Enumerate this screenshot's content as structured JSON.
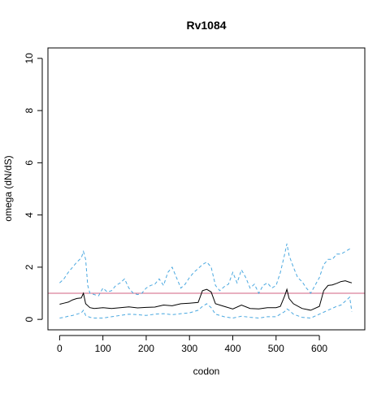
{
  "colors": {
    "omega": "#000000",
    "ci": "#4aa8e0",
    "reference": "#d06080"
  },
  "chart_data": {
    "type": "line",
    "title": "Rv1084",
    "xlabel": "codon",
    "ylabel": "omega (dN/dS)",
    "xlim": [
      -27,
      705
    ],
    "ylim": [
      -0.4,
      10.4
    ],
    "xticks": [
      0,
      100,
      200,
      300,
      400,
      500,
      600
    ],
    "yticks": [
      0,
      2,
      4,
      6,
      8,
      10
    ],
    "grid": false,
    "legend": "none",
    "reference_line": {
      "y": 1.0
    },
    "series": [
      {
        "role": "omega",
        "x": [
          0,
          10,
          20,
          30,
          40,
          50,
          55,
          60,
          70,
          80,
          90,
          100,
          120,
          140,
          160,
          180,
          200,
          220,
          240,
          260,
          280,
          300,
          320,
          330,
          340,
          350,
          360,
          380,
          400,
          420,
          440,
          460,
          480,
          500,
          510,
          520,
          525,
          530,
          540,
          560,
          580,
          600,
          610,
          620,
          630,
          640,
          650,
          660,
          670,
          675
        ],
        "y": [
          0.58,
          0.62,
          0.66,
          0.75,
          0.8,
          0.82,
          1.0,
          0.6,
          0.45,
          0.42,
          0.43,
          0.45,
          0.42,
          0.45,
          0.48,
          0.44,
          0.46,
          0.47,
          0.55,
          0.52,
          0.6,
          0.62,
          0.65,
          1.1,
          1.15,
          1.05,
          0.6,
          0.5,
          0.4,
          0.55,
          0.42,
          0.4,
          0.45,
          0.45,
          0.5,
          0.9,
          1.15,
          0.8,
          0.6,
          0.42,
          0.35,
          0.5,
          1.1,
          1.3,
          1.32,
          1.38,
          1.45,
          1.48,
          1.42,
          1.4
        ]
      },
      {
        "role": "upper-ci",
        "x": [
          0,
          10,
          20,
          30,
          40,
          50,
          55,
          60,
          65,
          70,
          80,
          90,
          100,
          110,
          120,
          130,
          140,
          150,
          160,
          170,
          180,
          190,
          200,
          210,
          220,
          230,
          240,
          250,
          260,
          270,
          280,
          290,
          300,
          310,
          320,
          330,
          340,
          350,
          360,
          370,
          380,
          390,
          400,
          410,
          420,
          430,
          440,
          450,
          460,
          470,
          480,
          490,
          500,
          510,
          520,
          525,
          530,
          540,
          550,
          560,
          570,
          580,
          590,
          600,
          610,
          620,
          630,
          640,
          650,
          660,
          670,
          675
        ],
        "y": [
          1.4,
          1.55,
          1.8,
          2.0,
          2.2,
          2.35,
          2.6,
          2.3,
          1.3,
          1.0,
          0.95,
          0.9,
          1.2,
          1.05,
          1.1,
          1.3,
          1.4,
          1.55,
          1.2,
          1.0,
          0.95,
          1.0,
          1.2,
          1.3,
          1.35,
          1.55,
          1.3,
          1.8,
          2.0,
          1.6,
          1.2,
          1.35,
          1.6,
          1.8,
          1.95,
          2.1,
          2.2,
          2.0,
          1.3,
          1.1,
          1.25,
          1.35,
          1.8,
          1.4,
          1.9,
          1.6,
          1.2,
          1.35,
          1.0,
          1.3,
          1.4,
          1.2,
          1.3,
          1.8,
          2.5,
          2.9,
          2.45,
          2.0,
          1.6,
          1.45,
          1.2,
          1.0,
          1.3,
          1.6,
          2.1,
          2.3,
          2.3,
          2.5,
          2.5,
          2.6,
          2.7,
          2.7
        ]
      },
      {
        "role": "lower-ci",
        "x": [
          0,
          10,
          20,
          30,
          40,
          50,
          55,
          60,
          70,
          80,
          100,
          120,
          140,
          160,
          180,
          200,
          220,
          240,
          260,
          280,
          300,
          320,
          330,
          340,
          350,
          360,
          380,
          400,
          420,
          440,
          460,
          480,
          500,
          520,
          525,
          530,
          540,
          560,
          580,
          600,
          620,
          640,
          650,
          660,
          670,
          675
        ],
        "y": [
          0.05,
          0.08,
          0.12,
          0.15,
          0.2,
          0.25,
          0.35,
          0.15,
          0.08,
          0.05,
          0.05,
          0.1,
          0.15,
          0.2,
          0.18,
          0.15,
          0.2,
          0.22,
          0.18,
          0.22,
          0.25,
          0.35,
          0.5,
          0.6,
          0.45,
          0.2,
          0.1,
          0.05,
          0.12,
          0.08,
          0.05,
          0.1,
          0.1,
          0.3,
          0.4,
          0.35,
          0.2,
          0.08,
          0.05,
          0.2,
          0.35,
          0.5,
          0.55,
          0.7,
          0.85,
          0.3
        ]
      }
    ]
  }
}
